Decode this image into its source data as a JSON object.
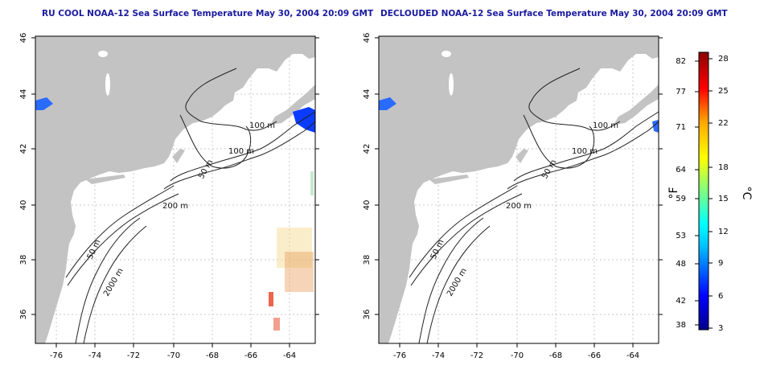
{
  "titles": {
    "left": "RU COOL NOAA-12 Sea Surface Temperature May 30, 2004 20:09 GMT",
    "right": "DECLOUDED NOAA-12 Sea Surface Temperature May 30, 2004 20:09 GMT"
  },
  "map": {
    "lon_ticks": [
      "-76",
      "-74",
      "-72",
      "-70",
      "-68",
      "-66",
      "-64"
    ],
    "lat_ticks": [
      "36",
      "38",
      "40",
      "42",
      "44",
      "46"
    ],
    "contour_labels": [
      "100 m",
      "100 m",
      "50 m",
      "200 m",
      "50 m",
      "2000 m"
    ],
    "land_color": "#c3c3c3",
    "grid": "dotted"
  },
  "colorbar": {
    "fahrenheit_ticks": [
      "82",
      "77",
      "71",
      "64",
      "59",
      "53",
      "48",
      "42",
      "38"
    ],
    "celsius_ticks": [
      "28",
      "25",
      "22",
      "18",
      "15",
      "12",
      "9",
      "6",
      "3"
    ],
    "fahrenheit_label": "°F",
    "celsius_label": "°C",
    "colors": [
      "#00008b",
      "#0000ff",
      "#00bfff",
      "#00ffff",
      "#7fff7f",
      "#ffff00",
      "#ffa500",
      "#ff0000",
      "#8b0000"
    ]
  }
}
